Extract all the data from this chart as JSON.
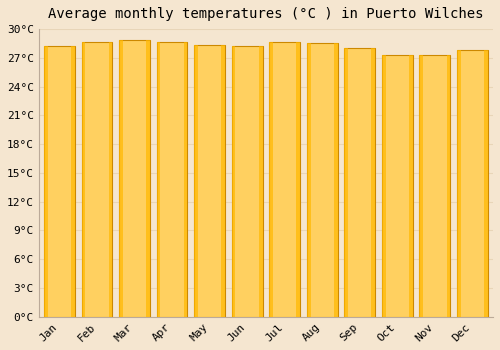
{
  "title": "Average monthly temperatures (°C ) in Puerto Wilches",
  "months": [
    "Jan",
    "Feb",
    "Mar",
    "Apr",
    "May",
    "Jun",
    "Jul",
    "Aug",
    "Sep",
    "Oct",
    "Nov",
    "Dec"
  ],
  "values": [
    28.2,
    28.7,
    28.9,
    28.6,
    28.3,
    28.2,
    28.6,
    28.5,
    28.0,
    27.3,
    27.3,
    27.8
  ],
  "bar_color": "#FFB800",
  "bar_color_light": "#FFD060",
  "ylim": [
    0,
    30
  ],
  "ytick_step": 3,
  "background_color": "#f5e6d0",
  "plot_bg_color": "#f5e6d0",
  "grid_color": "#e8d5b8",
  "title_fontsize": 10,
  "tick_fontsize": 8,
  "bar_edge_color": "#CC8800",
  "bar_width": 0.82
}
